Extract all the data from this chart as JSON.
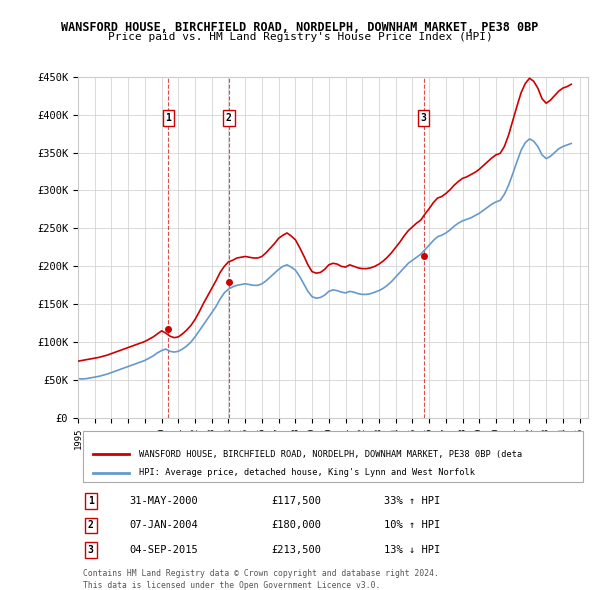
{
  "title": "WANSFORD HOUSE, BIRCHFIELD ROAD, NORDELPH, DOWNHAM MARKET, PE38 0BP",
  "subtitle": "Price paid vs. HM Land Registry's House Price Index (HPI)",
  "ylabel_ticks": [
    "£0",
    "£50K",
    "£100K",
    "£150K",
    "£200K",
    "£250K",
    "£300K",
    "£350K",
    "£400K",
    "£450K"
  ],
  "ytick_values": [
    0,
    50000,
    100000,
    150000,
    200000,
    250000,
    300000,
    350000,
    400000,
    450000
  ],
  "ylim": [
    0,
    450000
  ],
  "xlim_start": 1995.0,
  "xlim_end": 2025.5,
  "sale_dates": [
    2000.41,
    2004.02,
    2015.67
  ],
  "sale_prices": [
    117500,
    180000,
    213500
  ],
  "sale_labels": [
    "1",
    "2",
    "3"
  ],
  "sale_label_above": [
    true,
    true,
    true
  ],
  "dashed_line_color": "#cc0000",
  "hpi_line_color": "#6699cc",
  "price_line_color": "#cc0000",
  "background_color": "#ffffff",
  "grid_color": "#cccccc",
  "legend_box_color": "#ffffff",
  "legend_label_price": "WANSFORD HOUSE, BIRCHFIELD ROAD, NORDELPH, DOWNHAM MARKET, PE38 0BP (deta",
  "legend_label_hpi": "HPI: Average price, detached house, King's Lynn and West Norfolk",
  "table_entries": [
    {
      "num": "1",
      "date": "31-MAY-2000",
      "price": "£117,500",
      "change": "33% ↑ HPI"
    },
    {
      "num": "2",
      "date": "07-JAN-2004",
      "price": "£180,000",
      "change": "10% ↑ HPI"
    },
    {
      "num": "3",
      "date": "04-SEP-2015",
      "price": "£213,500",
      "change": "13% ↓ HPI"
    }
  ],
  "footnote1": "Contains HM Land Registry data © Crown copyright and database right 2024.",
  "footnote2": "This data is licensed under the Open Government Licence v3.0.",
  "hpi_data_x": [
    1995.0,
    1995.25,
    1995.5,
    1995.75,
    1996.0,
    1996.25,
    1996.5,
    1996.75,
    1997.0,
    1997.25,
    1997.5,
    1997.75,
    1998.0,
    1998.25,
    1998.5,
    1998.75,
    1999.0,
    1999.25,
    1999.5,
    1999.75,
    2000.0,
    2000.25,
    2000.5,
    2000.75,
    2001.0,
    2001.25,
    2001.5,
    2001.75,
    2002.0,
    2002.25,
    2002.5,
    2002.75,
    2003.0,
    2003.25,
    2003.5,
    2003.75,
    2004.0,
    2004.25,
    2004.5,
    2004.75,
    2005.0,
    2005.25,
    2005.5,
    2005.75,
    2006.0,
    2006.25,
    2006.5,
    2006.75,
    2007.0,
    2007.25,
    2007.5,
    2007.75,
    2008.0,
    2008.25,
    2008.5,
    2008.75,
    2009.0,
    2009.25,
    2009.5,
    2009.75,
    2010.0,
    2010.25,
    2010.5,
    2010.75,
    2011.0,
    2011.25,
    2011.5,
    2011.75,
    2012.0,
    2012.25,
    2012.5,
    2012.75,
    2013.0,
    2013.25,
    2013.5,
    2013.75,
    2014.0,
    2014.25,
    2014.5,
    2014.75,
    2015.0,
    2015.25,
    2015.5,
    2015.75,
    2016.0,
    2016.25,
    2016.5,
    2016.75,
    2017.0,
    2017.25,
    2017.5,
    2017.75,
    2018.0,
    2018.25,
    2018.5,
    2018.75,
    2019.0,
    2019.25,
    2019.5,
    2019.75,
    2020.0,
    2020.25,
    2020.5,
    2020.75,
    2021.0,
    2021.25,
    2021.5,
    2021.75,
    2022.0,
    2022.25,
    2022.5,
    2022.75,
    2023.0,
    2023.25,
    2023.5,
    2023.75,
    2024.0,
    2024.25,
    2024.5
  ],
  "hpi_data_y": [
    52000,
    51500,
    52000,
    53000,
    54000,
    55000,
    56500,
    58000,
    60000,
    62000,
    64000,
    66000,
    68000,
    70000,
    72000,
    74000,
    76000,
    79000,
    82000,
    86000,
    89000,
    91000,
    88000,
    87000,
    88000,
    91000,
    95000,
    100000,
    107000,
    115000,
    123000,
    131000,
    139000,
    147000,
    157000,
    165000,
    170000,
    173000,
    175000,
    176000,
    177000,
    176000,
    175000,
    175000,
    177000,
    181000,
    186000,
    191000,
    196000,
    200000,
    202000,
    199000,
    195000,
    187000,
    177000,
    167000,
    160000,
    158000,
    159000,
    162000,
    167000,
    169000,
    168000,
    166000,
    165000,
    167000,
    166000,
    164000,
    163000,
    163000,
    164000,
    166000,
    168000,
    171000,
    175000,
    180000,
    186000,
    192000,
    198000,
    204000,
    208000,
    212000,
    216000,
    222000,
    228000,
    234000,
    239000,
    241000,
    244000,
    248000,
    253000,
    257000,
    260000,
    262000,
    264000,
    267000,
    270000,
    274000,
    278000,
    282000,
    285000,
    287000,
    295000,
    307000,
    322000,
    338000,
    353000,
    363000,
    368000,
    365000,
    358000,
    347000,
    342000,
    345000,
    350000,
    355000,
    358000,
    360000,
    362000
  ],
  "price_data_x": [
    1995.0,
    1995.25,
    1995.5,
    1995.75,
    1996.0,
    1996.25,
    1996.5,
    1996.75,
    1997.0,
    1997.25,
    1997.5,
    1997.75,
    1998.0,
    1998.25,
    1998.5,
    1998.75,
    1999.0,
    1999.25,
    1999.5,
    1999.75,
    2000.0,
    2000.25,
    2000.5,
    2000.75,
    2001.0,
    2001.25,
    2001.5,
    2001.75,
    2002.0,
    2002.25,
    2002.5,
    2002.75,
    2003.0,
    2003.25,
    2003.5,
    2003.75,
    2004.0,
    2004.25,
    2004.5,
    2004.75,
    2005.0,
    2005.25,
    2005.5,
    2005.75,
    2006.0,
    2006.25,
    2006.5,
    2006.75,
    2007.0,
    2007.25,
    2007.5,
    2007.75,
    2008.0,
    2008.25,
    2008.5,
    2008.75,
    2009.0,
    2009.25,
    2009.5,
    2009.75,
    2010.0,
    2010.25,
    2010.5,
    2010.75,
    2011.0,
    2011.25,
    2011.5,
    2011.75,
    2012.0,
    2012.25,
    2012.5,
    2012.75,
    2013.0,
    2013.25,
    2013.5,
    2013.75,
    2014.0,
    2014.25,
    2014.5,
    2014.75,
    2015.0,
    2015.25,
    2015.5,
    2015.75,
    2016.0,
    2016.25,
    2016.5,
    2016.75,
    2017.0,
    2017.25,
    2017.5,
    2017.75,
    2018.0,
    2018.25,
    2018.5,
    2018.75,
    2019.0,
    2019.25,
    2019.5,
    2019.75,
    2020.0,
    2020.25,
    2020.5,
    2020.75,
    2021.0,
    2021.25,
    2021.5,
    2021.75,
    2022.0,
    2022.25,
    2022.5,
    2022.75,
    2023.0,
    2023.25,
    2023.5,
    2023.75,
    2024.0,
    2024.25,
    2024.5
  ],
  "price_data_y": [
    75000,
    76000,
    77000,
    78000,
    79000,
    80000,
    81500,
    83000,
    85000,
    87000,
    89000,
    91000,
    93000,
    95000,
    97000,
    99000,
    101000,
    104000,
    107000,
    111000,
    115000,
    112000,
    108000,
    106000,
    107000,
    111000,
    116000,
    122000,
    130000,
    140000,
    151000,
    161000,
    171000,
    181000,
    192000,
    200000,
    206000,
    208000,
    211000,
    212000,
    213000,
    212000,
    211000,
    211000,
    213000,
    218000,
    224000,
    230000,
    237000,
    241000,
    244000,
    240000,
    235000,
    225000,
    214000,
    202000,
    193000,
    191000,
    192000,
    196000,
    202000,
    204000,
    203000,
    200000,
    199000,
    202000,
    200000,
    198000,
    197000,
    197000,
    198000,
    200000,
    203000,
    207000,
    212000,
    218000,
    225000,
    232000,
    240000,
    247000,
    252000,
    257000,
    261000,
    269000,
    276000,
    284000,
    290000,
    292000,
    296000,
    301000,
    307000,
    312000,
    316000,
    318000,
    321000,
    324000,
    328000,
    333000,
    338000,
    343000,
    347000,
    349000,
    358000,
    373000,
    392000,
    411000,
    429000,
    441000,
    448000,
    444000,
    435000,
    421000,
    415000,
    419000,
    425000,
    431000,
    435000,
    437000,
    440000
  ]
}
